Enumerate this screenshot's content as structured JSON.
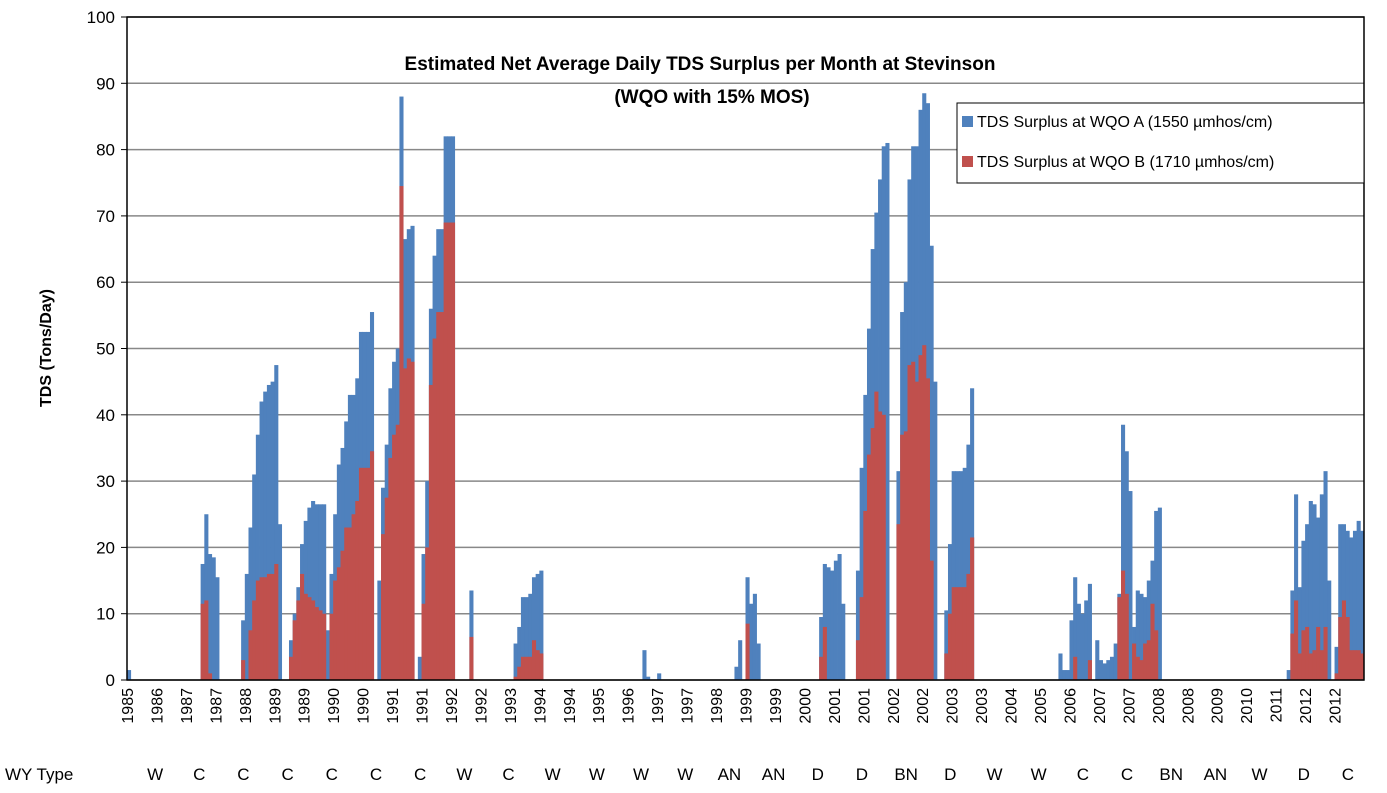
{
  "chart_data": {
    "type": "bar",
    "overlap": true,
    "title": "Estimated Net Average Daily TDS Surplus per Month at Stevinson",
    "subtitle": "(WQO with 15% MOS)",
    "y_label": "TDS (Tons/Day)",
    "ylim": [
      0,
      100
    ],
    "yticks": [
      0,
      10,
      20,
      30,
      40,
      50,
      60,
      70,
      80,
      90,
      100
    ],
    "grid": true,
    "legend": "upper right",
    "row_label": "WY Type",
    "wy_types": [
      "W",
      "C",
      "C",
      "C",
      "C",
      "C",
      "C",
      "W",
      "C",
      "W",
      "W",
      "W",
      "W",
      "AN",
      "AN",
      "D",
      "D",
      "BN",
      "D",
      "W",
      "W",
      "C",
      "C",
      "BN",
      "AN",
      "W",
      "D",
      "C"
    ],
    "categories": [
      "1985",
      null,
      null,
      null,
      null,
      null,
      null,
      null,
      "1986",
      null,
      null,
      null,
      null,
      null,
      null,
      null,
      "1987",
      null,
      null,
      null,
      null,
      null,
      null,
      null,
      "1987",
      null,
      null,
      null,
      null,
      null,
      null,
      null,
      "1988",
      null,
      null,
      null,
      null,
      null,
      null,
      null,
      "1989",
      null,
      null,
      null,
      null,
      null,
      null,
      null,
      "1989",
      null,
      null,
      null,
      null,
      null,
      null,
      null,
      "1990",
      null,
      null,
      null,
      null,
      null,
      null,
      null,
      "1990",
      null,
      null,
      null,
      null,
      null,
      null,
      null,
      "1991",
      null,
      null,
      null,
      null,
      null,
      null,
      null,
      "1991",
      null,
      null,
      null,
      null,
      null,
      null,
      null,
      "1992",
      null,
      null,
      null,
      null,
      null,
      null,
      null,
      "1992",
      null,
      null,
      null,
      null,
      null,
      null,
      null,
      "1993",
      null,
      null,
      null,
      null,
      null,
      null,
      null,
      "1994",
      null,
      null,
      null,
      null,
      null,
      null,
      null,
      "1994",
      null,
      null,
      null,
      null,
      null,
      null,
      null,
      "1995",
      null,
      null,
      null,
      null,
      null,
      null,
      null,
      "1996",
      null,
      null,
      null,
      null,
      null,
      null,
      null,
      "1997",
      null,
      null,
      null,
      null,
      null,
      null,
      null,
      "1997",
      null,
      null,
      null,
      null,
      null,
      null,
      null,
      "1998",
      null,
      null,
      null,
      null,
      null,
      null,
      null,
      "1999",
      null,
      null,
      null,
      null,
      null,
      null,
      null,
      "1999",
      null,
      null,
      null,
      null,
      null,
      null,
      null,
      "2000",
      null,
      null,
      null,
      null,
      null,
      null,
      null,
      "2001",
      null,
      null,
      null,
      null,
      null,
      null,
      null,
      "2001",
      null,
      null,
      null,
      null,
      null,
      null,
      null,
      "2002",
      null,
      null,
      null,
      null,
      null,
      null,
      null,
      "2002",
      null,
      null,
      null,
      null,
      null,
      null,
      null,
      "2003",
      null,
      null,
      null,
      null,
      null,
      null,
      null,
      "2003",
      null,
      null,
      null,
      null,
      null,
      null,
      null,
      "2004",
      null,
      null,
      null,
      null,
      null,
      null,
      null,
      "2005",
      null,
      null,
      null,
      null,
      null,
      null,
      null,
      "2006",
      null,
      null,
      null,
      null,
      null,
      null,
      null,
      "2007",
      null,
      null,
      null,
      null,
      null,
      null,
      null,
      "2007",
      null,
      null,
      null,
      null,
      null,
      null,
      null,
      "2008",
      null,
      null,
      null,
      null,
      null,
      null,
      null,
      "2008",
      null,
      null,
      null,
      null,
      null,
      null,
      null,
      "2009",
      null,
      null,
      null,
      null,
      null,
      null,
      null,
      "2010",
      null,
      null,
      null,
      null,
      null,
      null,
      null,
      "2011",
      null,
      null,
      null,
      null,
      null,
      null,
      null,
      "2012",
      null,
      null,
      null,
      null,
      null,
      null,
      null,
      "2012",
      null,
      null,
      null,
      null,
      null,
      null,
      null
    ],
    "series": [
      {
        "name": "TDS Surplus at WQO A (1550 µmhos/cm)",
        "color": "#4f81bd",
        "values": [
          1.5,
          0,
          0,
          0,
          0,
          0,
          0,
          0,
          0,
          0,
          0,
          0,
          0,
          0,
          0,
          0,
          0,
          0,
          0,
          0,
          17.5,
          25,
          19,
          18.5,
          15.5,
          0,
          0,
          0,
          0,
          0,
          0,
          9,
          16,
          23,
          31,
          37,
          42,
          43.5,
          44.5,
          45,
          47.5,
          23.5,
          0,
          0,
          6,
          10,
          14,
          20.5,
          24,
          26,
          27,
          26.5,
          26.5,
          26.5,
          7.5,
          16,
          25,
          32.5,
          35,
          39,
          43,
          43,
          45.5,
          52.5,
          52.5,
          52.5,
          55.5,
          0,
          15,
          29,
          35.5,
          44,
          48,
          50,
          88,
          66.5,
          68,
          68.5,
          0,
          3.5,
          19,
          30,
          56,
          64,
          68,
          68,
          82,
          82,
          82,
          0,
          0,
          0,
          0,
          13.5,
          0,
          0,
          0,
          0,
          0,
          0,
          0,
          0,
          0,
          0,
          0,
          5.5,
          8,
          12.5,
          12.5,
          13,
          15.5,
          16,
          16.5,
          0,
          0,
          0,
          0,
          0,
          0,
          0,
          0,
          0,
          0,
          0,
          0,
          0,
          0,
          0,
          0,
          0,
          0,
          0,
          0,
          0,
          0,
          0,
          0,
          0,
          0,
          0,
          4.5,
          0.5,
          0,
          0,
          1,
          0,
          0,
          0,
          0,
          0,
          0,
          0,
          0,
          0,
          0,
          0,
          0,
          0,
          0,
          0,
          0,
          0,
          0,
          0,
          0,
          2,
          6,
          0,
          15.5,
          11.5,
          13,
          5.5,
          0,
          0,
          0,
          0,
          0,
          0,
          0,
          0,
          0,
          0,
          0,
          0,
          0,
          0,
          0,
          0,
          9.5,
          17.5,
          17,
          16.5,
          18,
          19,
          11.5,
          0,
          0,
          0,
          16.5,
          32,
          43,
          53,
          65,
          70.5,
          75.5,
          80.5,
          81,
          0,
          0,
          31.5,
          55.5,
          60,
          75.5,
          80.5,
          80.5,
          86,
          88.5,
          87,
          65.5,
          45,
          0,
          0,
          10.5,
          20.5,
          31.5,
          31.5,
          31.5,
          32,
          35.5,
          44,
          0,
          0,
          0,
          0,
          0,
          0,
          0,
          0,
          0,
          0,
          0,
          0,
          0,
          0,
          0,
          0,
          0,
          0,
          0,
          0,
          0,
          0,
          0,
          4,
          1.5,
          1.5,
          9,
          15.5,
          11.5,
          10,
          12,
          14.5,
          0,
          6,
          3,
          2.5,
          3,
          3.5,
          5.5,
          13,
          38.5,
          34.5,
          28.5,
          8,
          13.5,
          13,
          12.5,
          15,
          18,
          25.5,
          26,
          0,
          0,
          0,
          0,
          0,
          0,
          0,
          0,
          0,
          0,
          0,
          0,
          0,
          0,
          0,
          0,
          0,
          0,
          0,
          0,
          0,
          0,
          0,
          0,
          0,
          0,
          0,
          0,
          0,
          0,
          0,
          0,
          0,
          0,
          1.5,
          13.5,
          28,
          14,
          21,
          23.5,
          27,
          26.5,
          24.5,
          28,
          31.5,
          15,
          0,
          5,
          23.5,
          23.5,
          22.5,
          21.5,
          22.5,
          24,
          22.5
        ]
      },
      {
        "name": "TDS Surplus at WQO B (1710 µmhos/cm)",
        "color": "#c0504d",
        "values": [
          0,
          0,
          0,
          0,
          0,
          0,
          0,
          0,
          0,
          0,
          0,
          0,
          0,
          0,
          0,
          0,
          0,
          0,
          0,
          0,
          11.5,
          12,
          1,
          0,
          0,
          0,
          0,
          0,
          0,
          0,
          0,
          3,
          0,
          7.5,
          12,
          15,
          15.5,
          15.5,
          16,
          16,
          17.5,
          0,
          0,
          0,
          3.5,
          9,
          12,
          16,
          13,
          12.5,
          12,
          11,
          10.5,
          10,
          0,
          10,
          15,
          17,
          19.5,
          23,
          23,
          25,
          27,
          32,
          32,
          32,
          34.5,
          0,
          0,
          22,
          27.5,
          33.5,
          37,
          38.5,
          74.5,
          47,
          48.5,
          48,
          0,
          0,
          11.5,
          20,
          44.5,
          51.5,
          55.5,
          55.5,
          69,
          69,
          69,
          0,
          0,
          0,
          0,
          6.5,
          0,
          0,
          0,
          0,
          0,
          0,
          0,
          0,
          0,
          0,
          0,
          0.5,
          2,
          3.5,
          3.5,
          3.5,
          6,
          4.5,
          4,
          0,
          0,
          0,
          0,
          0,
          0,
          0,
          0,
          0,
          0,
          0,
          0,
          0,
          0,
          0,
          0,
          0,
          0,
          0,
          0,
          0,
          0,
          0,
          0,
          0,
          0,
          0,
          0,
          0,
          0,
          0,
          0,
          0,
          0,
          0,
          0,
          0,
          0,
          0,
          0,
          0,
          0,
          0,
          0,
          0,
          0,
          0,
          0,
          0,
          0,
          0,
          0,
          0,
          0,
          0,
          8.5,
          0,
          0,
          0,
          0,
          0,
          0,
          0,
          0,
          0,
          0,
          0,
          0,
          0,
          0,
          0,
          0,
          0,
          0,
          0,
          3.5,
          8,
          0,
          0,
          0,
          0,
          0,
          0,
          0,
          0,
          6,
          12.5,
          25.5,
          34,
          38,
          43.5,
          40.5,
          40,
          0,
          0,
          0,
          23.5,
          37,
          37.5,
          47.5,
          48,
          45,
          49,
          50.5,
          45.5,
          18,
          0,
          0,
          0,
          4,
          10,
          14,
          14,
          14,
          14,
          16,
          21.5,
          0,
          0,
          0,
          0,
          0,
          0,
          0,
          0,
          0,
          0,
          0,
          0,
          0,
          0,
          0,
          0,
          0,
          0,
          0,
          0,
          0,
          0,
          0,
          0,
          0,
          0,
          0,
          3.5,
          0,
          0,
          0,
          3,
          0,
          0,
          0,
          0,
          0,
          0,
          0,
          12.5,
          16.5,
          13,
          0,
          5.5,
          3.5,
          3,
          5.5,
          6,
          11.5,
          7.5,
          0,
          0,
          0,
          0,
          0,
          0,
          0,
          0,
          0,
          0,
          0,
          0,
          0,
          0,
          0,
          0,
          0,
          0,
          0,
          0,
          0,
          0,
          0,
          0,
          0,
          0,
          0,
          0,
          0,
          0,
          0,
          0,
          0,
          0,
          0,
          0,
          7,
          12,
          4,
          7.5,
          8,
          4,
          4.5,
          8,
          4.5,
          8,
          0,
          0,
          1,
          9.5,
          12,
          9.5,
          4.5,
          4.5,
          4.5,
          4
        ]
      }
    ]
  }
}
